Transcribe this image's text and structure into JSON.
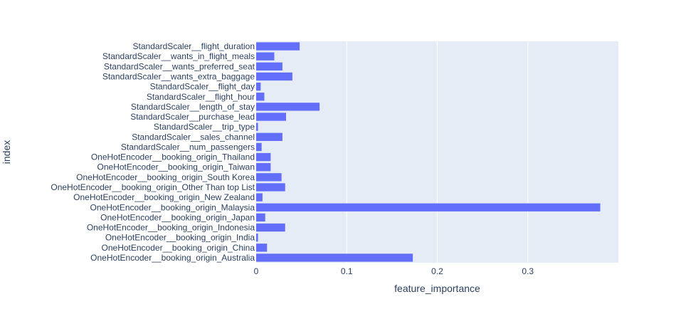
{
  "chart_data": {
    "type": "bar",
    "orientation": "horizontal",
    "xlabel": "feature_importance",
    "ylabel": "index",
    "xlim": [
      0,
      0.4
    ],
    "x_ticks": [
      0,
      0.1,
      0.2,
      0.3
    ],
    "x_tick_labels": [
      "0",
      "0.1",
      "0.2",
      "0.3"
    ],
    "grid": true,
    "colors": {
      "bar": "#636efa",
      "plot_bg": "#e5ecf6",
      "grid": "#ffffff",
      "text": "#2a3f5f"
    },
    "categories": [
      "StandardScaler__flight_duration",
      "StandardScaler__wants_in_flight_meals",
      "StandardScaler__wants_preferred_seat",
      "StandardScaler__wants_extra_baggage",
      "StandardScaler__flight_day",
      "StandardScaler__flight_hour",
      "StandardScaler__length_of_stay",
      "StandardScaler__purchase_lead",
      "StandardScaler__trip_type",
      "StandardScaler__sales_channel",
      "StandardScaler__num_passengers",
      "OneHotEncoder__booking_origin_Thailand",
      "OneHotEncoder__booking_origin_Taiwan",
      "OneHotEncoder__booking_origin_South Korea",
      "OneHotEncoder__booking_origin_Other Than top List",
      "OneHotEncoder__booking_origin_New Zealand",
      "OneHotEncoder__booking_origin_Malaysia",
      "OneHotEncoder__booking_origin_Japan",
      "OneHotEncoder__booking_origin_Indonesia",
      "OneHotEncoder__booking_origin_India",
      "OneHotEncoder__booking_origin_China",
      "OneHotEncoder__booking_origin_Australia"
    ],
    "values": [
      0.048,
      0.02,
      0.029,
      0.04,
      0.005,
      0.009,
      0.07,
      0.033,
      0.002,
      0.029,
      0.006,
      0.016,
      0.016,
      0.028,
      0.032,
      0.007,
      0.38,
      0.01,
      0.032,
      0.002,
      0.012,
      0.173
    ]
  }
}
